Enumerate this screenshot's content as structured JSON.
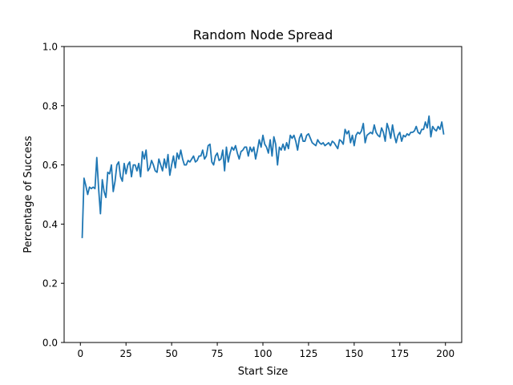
{
  "chart_data": {
    "type": "line",
    "title": "Random Node Spread",
    "xlabel": "Start Size",
    "ylabel": "Percentage of Success",
    "xlim": [
      -8.9,
      208.9
    ],
    "ylim": [
      0.0,
      1.0
    ],
    "xticks": [
      0,
      25,
      50,
      75,
      100,
      125,
      150,
      175,
      200
    ],
    "xtick_labels": [
      "0",
      "25",
      "50",
      "75",
      "100",
      "125",
      "150",
      "175",
      "200"
    ],
    "yticks": [
      0.0,
      0.2,
      0.4,
      0.6,
      0.8,
      1.0
    ],
    "ytick_labels": [
      "0.0",
      "0.2",
      "0.4",
      "0.6",
      "0.8",
      "1.0"
    ],
    "grid": false,
    "line_color": "#1f77b4",
    "series": [
      {
        "x": [
          1,
          2,
          3,
          4,
          5,
          6,
          7,
          8,
          9,
          10,
          11,
          12,
          13,
          14,
          15,
          16,
          17,
          18,
          19,
          20,
          21,
          22,
          23,
          24,
          25,
          26,
          27,
          28,
          29,
          30,
          31,
          32,
          33,
          34,
          35,
          36,
          37,
          38,
          39,
          40,
          41,
          42,
          43,
          44,
          45,
          46,
          47,
          48,
          49,
          50,
          51,
          52,
          53,
          54,
          55,
          56,
          57,
          58,
          59,
          60,
          61,
          62,
          63,
          64,
          65,
          66,
          67,
          68,
          69,
          70,
          71,
          72,
          73,
          74,
          75,
          76,
          77,
          78,
          79,
          80,
          81,
          82,
          83,
          84,
          85,
          86,
          87,
          88,
          89,
          90,
          91,
          92,
          93,
          94,
          95,
          96,
          97,
          98,
          99,
          100,
          101,
          102,
          103,
          104,
          105,
          106,
          107,
          108,
          109,
          110,
          111,
          112,
          113,
          114,
          115,
          116,
          117,
          118,
          119,
          120,
          121,
          122,
          123,
          124,
          125,
          126,
          127,
          128,
          129,
          130,
          131,
          132,
          133,
          134,
          135,
          136,
          137,
          138,
          139,
          140,
          141,
          142,
          143,
          144,
          145,
          146,
          147,
          148,
          149,
          150,
          151,
          152,
          153,
          154,
          155,
          156,
          157,
          158,
          159,
          160,
          161,
          162,
          163,
          164,
          165,
          166,
          167,
          168,
          169,
          170,
          171,
          172,
          173,
          174,
          175,
          176,
          177,
          178,
          179,
          180,
          181,
          182,
          183,
          184,
          185,
          186,
          187,
          188,
          189,
          190,
          191,
          192,
          193,
          194,
          195,
          196,
          197,
          198,
          199
        ],
        "y": [
          0.355,
          0.555,
          0.53,
          0.5,
          0.525,
          0.52,
          0.525,
          0.52,
          0.625,
          0.52,
          0.435,
          0.55,
          0.51,
          0.49,
          0.575,
          0.57,
          0.6,
          0.51,
          0.545,
          0.6,
          0.61,
          0.56,
          0.545,
          0.605,
          0.57,
          0.6,
          0.61,
          0.56,
          0.6,
          0.6,
          0.58,
          0.605,
          0.56,
          0.645,
          0.62,
          0.65,
          0.58,
          0.59,
          0.615,
          0.6,
          0.58,
          0.575,
          0.62,
          0.6,
          0.58,
          0.62,
          0.59,
          0.635,
          0.565,
          0.6,
          0.63,
          0.59,
          0.64,
          0.62,
          0.65,
          0.62,
          0.6,
          0.6,
          0.615,
          0.61,
          0.62,
          0.63,
          0.61,
          0.615,
          0.63,
          0.63,
          0.65,
          0.62,
          0.63,
          0.665,
          0.67,
          0.61,
          0.6,
          0.63,
          0.64,
          0.615,
          0.62,
          0.65,
          0.58,
          0.66,
          0.61,
          0.64,
          0.66,
          0.65,
          0.665,
          0.64,
          0.62,
          0.645,
          0.65,
          0.66,
          0.66,
          0.63,
          0.66,
          0.645,
          0.66,
          0.62,
          0.65,
          0.685,
          0.66,
          0.7,
          0.67,
          0.66,
          0.64,
          0.685,
          0.63,
          0.695,
          0.67,
          0.6,
          0.66,
          0.65,
          0.67,
          0.65,
          0.675,
          0.655,
          0.7,
          0.69,
          0.7,
          0.68,
          0.65,
          0.69,
          0.705,
          0.68,
          0.68,
          0.7,
          0.705,
          0.69,
          0.675,
          0.67,
          0.665,
          0.685,
          0.675,
          0.67,
          0.675,
          0.665,
          0.67,
          0.675,
          0.665,
          0.68,
          0.675,
          0.665,
          0.655,
          0.685,
          0.68,
          0.67,
          0.72,
          0.705,
          0.715,
          0.675,
          0.7,
          0.665,
          0.7,
          0.71,
          0.705,
          0.715,
          0.74,
          0.675,
          0.7,
          0.705,
          0.71,
          0.705,
          0.735,
          0.71,
          0.7,
          0.695,
          0.725,
          0.71,
          0.68,
          0.74,
          0.72,
          0.69,
          0.735,
          0.7,
          0.675,
          0.7,
          0.71,
          0.68,
          0.7,
          0.695,
          0.705,
          0.7,
          0.71,
          0.71,
          0.715,
          0.73,
          0.71,
          0.705,
          0.72,
          0.72,
          0.745,
          0.725,
          0.765,
          0.695,
          0.73,
          0.72,
          0.715,
          0.73,
          0.72,
          0.745,
          0.705
        ]
      }
    ]
  }
}
